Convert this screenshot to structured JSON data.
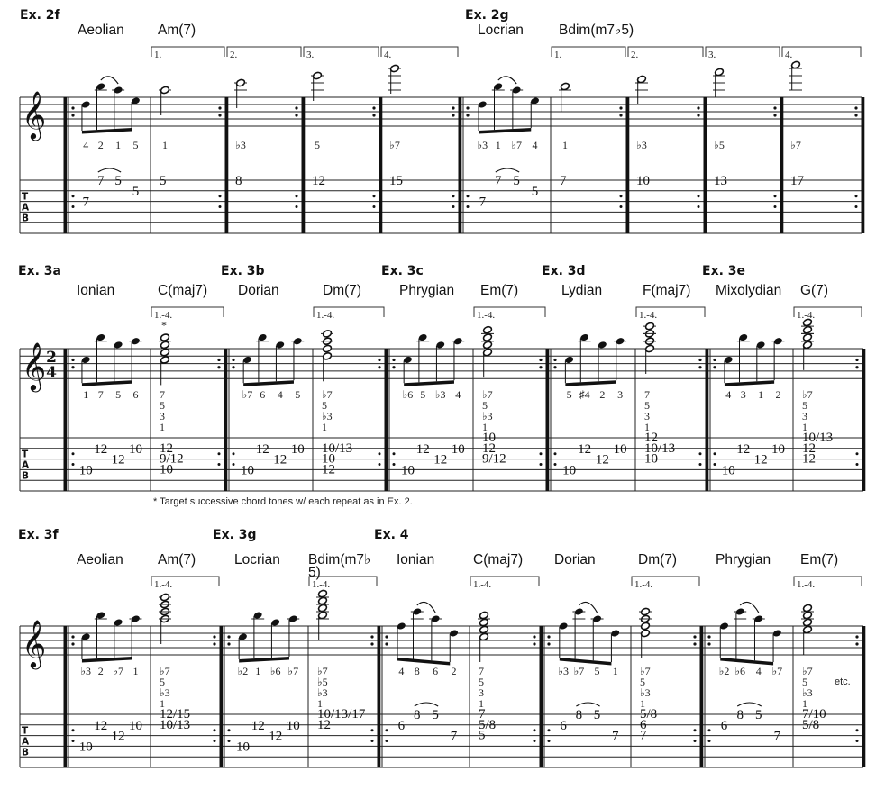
{
  "clef_icon": "treble-clef-icon",
  "tab_letters": [
    "T",
    "A",
    "B"
  ],
  "footnote": "* Target successive chord tones w/ each repeat as in Ex. 2.",
  "etc": "etc.",
  "systems": [
    {
      "examples": [
        {
          "label": "Ex. 2f",
          "mode": "Aeolian",
          "chord": "Am(7)",
          "scale": {
            "notes": [
              "D5",
              "B5",
              "A5",
              "E5"
            ],
            "degrees": [
              "4",
              "2",
              "1",
              "5"
            ],
            "tab": [
              {
                "string": 3,
                "fret": "7"
              },
              {
                "string": 1,
                "fret": "7"
              },
              {
                "string": 1,
                "fret": "5"
              },
              {
                "string": 2,
                "fret": "5"
              }
            ],
            "slur": [
              1,
              2
            ]
          },
          "endings": [
            {
              "label": "1.",
              "notes": [
                "A5"
              ],
              "degrees": [
                "1"
              ],
              "tab": [
                {
                  "string": 1,
                  "fret": "5"
                }
              ]
            },
            {
              "label": "2.",
              "notes": [
                "C6"
              ],
              "degrees": [
                "♭3"
              ],
              "tab": [
                {
                  "string": 1,
                  "fret": "8"
                }
              ]
            },
            {
              "label": "3.",
              "notes": [
                "E6"
              ],
              "degrees": [
                "5"
              ],
              "tab": [
                {
                  "string": 1,
                  "fret": "12"
                }
              ]
            },
            {
              "label": "4.",
              "notes": [
                "G6"
              ],
              "degrees": [
                "♭7"
              ],
              "tab": [
                {
                  "string": 1,
                  "fret": "15"
                }
              ]
            }
          ]
        },
        {
          "label": "Ex. 2g",
          "mode": "Locrian",
          "chord": "Bdim(m7♭5)",
          "scale": {
            "notes": [
              "D5",
              "B5",
              "A5",
              "E5"
            ],
            "degrees": [
              "♭3",
              "1",
              "♭7",
              "4"
            ],
            "tab": [
              {
                "string": 3,
                "fret": "7"
              },
              {
                "string": 1,
                "fret": "7"
              },
              {
                "string": 1,
                "fret": "5"
              },
              {
                "string": 2,
                "fret": "5"
              }
            ],
            "slur": [
              1,
              2
            ]
          },
          "endings": [
            {
              "label": "1.",
              "notes": [
                "B5"
              ],
              "degrees": [
                "1"
              ],
              "tab": [
                {
                  "string": 1,
                  "fret": "7"
                }
              ]
            },
            {
              "label": "2.",
              "notes": [
                "D6"
              ],
              "degrees": [
                "♭3"
              ],
              "tab": [
                {
                  "string": 1,
                  "fret": "10"
                }
              ]
            },
            {
              "label": "3.",
              "notes": [
                "F6"
              ],
              "degrees": [
                "♭5"
              ],
              "tab": [
                {
                  "string": 1,
                  "fret": "13"
                }
              ]
            },
            {
              "label": "4.",
              "notes": [
                "A6"
              ],
              "degrees": [
                "♭7"
              ],
              "tab": [
                {
                  "string": 1,
                  "fret": "17"
                }
              ]
            }
          ]
        }
      ]
    },
    {
      "time_signature": [
        "2",
        "4"
      ],
      "examples": [
        {
          "label": "Ex. 3a",
          "mode": "Ionian",
          "chord": "C(maj7)",
          "scale": {
            "notes": [
              "C5",
              "B5",
              "G5",
              "A5"
            ],
            "degrees": [
              "1",
              "7",
              "5",
              "6"
            ],
            "tab": [
              {
                "string": 4,
                "fret": "10"
              },
              {
                "string": 2,
                "fret": "12"
              },
              {
                "string": 3,
                "fret": "12"
              },
              {
                "string": 2,
                "fret": "10"
              }
            ]
          },
          "endings": [
            {
              "label": "1.-4.",
              "footnote_mark": "*",
              "chord": true,
              "notes": [
                "C5",
                "E5",
                "G5",
                "B5"
              ],
              "degrees": [
                "7",
                "5",
                "3",
                "1"
              ],
              "tab": [
                {
                  "string": 2,
                  "fret": "12"
                },
                {
                  "string": 3,
                  "fret": "9/12"
                },
                {
                  "string": 4,
                  "fret": "10"
                }
              ]
            }
          ]
        },
        {
          "label": "Ex. 3b",
          "mode": "Dorian",
          "chord": "Dm(7)",
          "scale": {
            "notes": [
              "C5",
              "B5",
              "G5",
              "A5"
            ],
            "degrees": [
              "♭7",
              "6",
              "4",
              "5"
            ],
            "tab": [
              {
                "string": 4,
                "fret": "10"
              },
              {
                "string": 2,
                "fret": "12"
              },
              {
                "string": 3,
                "fret": "12"
              },
              {
                "string": 2,
                "fret": "10"
              }
            ]
          },
          "endings": [
            {
              "label": "1.-4.",
              "chord": true,
              "notes": [
                "D5",
                "F5",
                "A5",
                "C6"
              ],
              "degrees": [
                "♭7",
                "5",
                "♭3",
                "1"
              ],
              "tab": [
                {
                  "string": 2,
                  "fret": "10/13"
                },
                {
                  "string": 3,
                  "fret": "10"
                },
                {
                  "string": 4,
                  "fret": "12"
                }
              ]
            }
          ]
        },
        {
          "label": "Ex. 3c",
          "mode": "Phrygian",
          "chord": "Em(7)",
          "scale": {
            "notes": [
              "C5",
              "B5",
              "G5",
              "A5"
            ],
            "degrees": [
              "♭6",
              "5",
              "♭3",
              "4"
            ],
            "tab": [
              {
                "string": 4,
                "fret": "10"
              },
              {
                "string": 2,
                "fret": "12"
              },
              {
                "string": 3,
                "fret": "12"
              },
              {
                "string": 2,
                "fret": "10"
              }
            ]
          },
          "endings": [
            {
              "label": "1.-4.",
              "chord": true,
              "notes": [
                "E5",
                "G5",
                "B5",
                "D6"
              ],
              "degrees": [
                "♭7",
                "5",
                "♭3",
                "1"
              ],
              "tab": [
                {
                  "string": 1,
                  "fret": "10"
                },
                {
                  "string": 2,
                  "fret": "12"
                },
                {
                  "string": 3,
                  "fret": "9/12"
                }
              ]
            }
          ]
        },
        {
          "label": "Ex. 3d",
          "mode": "Lydian",
          "chord": "F(maj7)",
          "scale": {
            "notes": [
              "C5",
              "B5",
              "G5",
              "A5"
            ],
            "degrees": [
              "5",
              "♯4",
              "2",
              "3"
            ],
            "tab": [
              {
                "string": 4,
                "fret": "10"
              },
              {
                "string": 2,
                "fret": "12"
              },
              {
                "string": 3,
                "fret": "12"
              },
              {
                "string": 2,
                "fret": "10"
              }
            ]
          },
          "endings": [
            {
              "label": "1.-4.",
              "chord": true,
              "notes": [
                "F5",
                "A5",
                "C6",
                "E6"
              ],
              "degrees": [
                "7",
                "5",
                "3",
                "1"
              ],
              "tab": [
                {
                  "string": 1,
                  "fret": "12"
                },
                {
                  "string": 2,
                  "fret": "10/13"
                },
                {
                  "string": 3,
                  "fret": "10"
                }
              ]
            }
          ]
        },
        {
          "label": "Ex. 3e",
          "mode": "Mixolydian",
          "chord": "G(7)",
          "scale": {
            "notes": [
              "C5",
              "B5",
              "G5",
              "A5"
            ],
            "degrees": [
              "4",
              "3",
              "1",
              "2"
            ],
            "tab": [
              {
                "string": 4,
                "fret": "10"
              },
              {
                "string": 2,
                "fret": "12"
              },
              {
                "string": 3,
                "fret": "12"
              },
              {
                "string": 2,
                "fret": "10"
              }
            ]
          },
          "endings": [
            {
              "label": "1.-4.",
              "chord": true,
              "notes": [
                "G5",
                "B5",
                "D6",
                "F6"
              ],
              "degrees": [
                "♭7",
                "5",
                "3",
                "1"
              ],
              "tab": [
                {
                  "string": 1,
                  "fret": "10/13"
                },
                {
                  "string": 2,
                  "fret": "12"
                },
                {
                  "string": 3,
                  "fret": "12"
                }
              ]
            }
          ]
        }
      ]
    },
    {
      "examples": [
        {
          "label": "Ex. 3f",
          "mode": "Aeolian",
          "chord": "Am(7)",
          "scale": {
            "notes": [
              "C5",
              "B5",
              "G5",
              "A5"
            ],
            "degrees": [
              "♭3",
              "2",
              "♭7",
              "1"
            ],
            "tab": [
              {
                "string": 4,
                "fret": "10"
              },
              {
                "string": 2,
                "fret": "12"
              },
              {
                "string": 3,
                "fret": "12"
              },
              {
                "string": 2,
                "fret": "10"
              }
            ]
          },
          "endings": [
            {
              "label": "1.-4.",
              "chord": true,
              "notes": [
                "A5",
                "C6",
                "E6",
                "G6"
              ],
              "degrees": [
                "♭7",
                "5",
                "♭3",
                "1"
              ],
              "tab": [
                {
                  "string": 1,
                  "fret": "12/15"
                },
                {
                  "string": 2,
                  "fret": "10/13"
                }
              ]
            }
          ]
        },
        {
          "label": "Ex. 3g",
          "mode": "Locrian",
          "chord": "Bdim(m7♭5)",
          "scale": {
            "notes": [
              "C5",
              "B5",
              "G5",
              "A5"
            ],
            "degrees": [
              "♭2",
              "1",
              "♭6",
              "♭7"
            ],
            "tab": [
              {
                "string": 4,
                "fret": "10"
              },
              {
                "string": 2,
                "fret": "12"
              },
              {
                "string": 3,
                "fret": "12"
              },
              {
                "string": 2,
                "fret": "10"
              }
            ]
          },
          "endings": [
            {
              "label": "1.-4.",
              "chord": true,
              "notes": [
                "B5",
                "D6",
                "F6",
                "A6"
              ],
              "degrees": [
                "♭7",
                "♭5",
                "♭3",
                "1"
              ],
              "tab": [
                {
                  "string": 1,
                  "fret": "10/13/17"
                },
                {
                  "string": 2,
                  "fret": "12"
                }
              ]
            }
          ]
        },
        {
          "label": "Ex. 4",
          "mode": "Ionian",
          "chord": "C(maj7)",
          "scale": {
            "notes": [
              "F5",
              "C6",
              "A5",
              "D5"
            ],
            "degrees": [
              "4",
              "8",
              "6",
              "2"
            ],
            "tab": [
              {
                "string": 2,
                "fret": "6"
              },
              {
                "string": 1,
                "fret": "8"
              },
              {
                "string": 1,
                "fret": "5"
              },
              {
                "string": 3,
                "fret": "7"
              }
            ],
            "slur": [
              1,
              2
            ]
          },
          "endings": [
            {
              "label": "1.-4.",
              "chord": true,
              "notes": [
                "C5",
                "E5",
                "G5",
                "B5"
              ],
              "degrees": [
                "7",
                "5",
                "3",
                "1"
              ],
              "tab": [
                {
                  "string": 1,
                  "fret": "7"
                },
                {
                  "string": 2,
                  "fret": "5/8"
                },
                {
                  "string": 3,
                  "fret": "5"
                }
              ]
            }
          ]
        },
        {
          "mode": "Dorian",
          "chord": "Dm(7)",
          "scale": {
            "notes": [
              "F5",
              "C6",
              "A5",
              "D5"
            ],
            "degrees": [
              "♭3",
              "♭7",
              "5",
              "1"
            ],
            "tab": [
              {
                "string": 2,
                "fret": "6"
              },
              {
                "string": 1,
                "fret": "8"
              },
              {
                "string": 1,
                "fret": "5"
              },
              {
                "string": 3,
                "fret": "7"
              }
            ],
            "slur": [
              1,
              2
            ]
          },
          "endings": [
            {
              "label": "1.-4.",
              "chord": true,
              "notes": [
                "D5",
                "F5",
                "A5",
                "C6"
              ],
              "degrees": [
                "♭7",
                "5",
                "♭3",
                "1"
              ],
              "tab": [
                {
                  "string": 1,
                  "fret": "5/8"
                },
                {
                  "string": 2,
                  "fret": "6"
                },
                {
                  "string": 3,
                  "fret": "7"
                }
              ]
            }
          ]
        },
        {
          "mode": "Phrygian",
          "chord": "Em(7)",
          "scale": {
            "notes": [
              "F5",
              "C6",
              "A5",
              "D5"
            ],
            "degrees": [
              "♭2",
              "♭6",
              "4",
              "♭7"
            ],
            "tab": [
              {
                "string": 2,
                "fret": "6"
              },
              {
                "string": 1,
                "fret": "8"
              },
              {
                "string": 1,
                "fret": "5"
              },
              {
                "string": 3,
                "fret": "7"
              }
            ],
            "slur": [
              1,
              2
            ]
          },
          "endings": [
            {
              "label": "1.-4.",
              "chord": true,
              "etc": true,
              "notes": [
                "E5",
                "G5",
                "B5",
                "D6"
              ],
              "degrees": [
                "♭7",
                "5",
                "♭3",
                "1"
              ],
              "tab": [
                {
                  "string": 1,
                  "fret": "7/10"
                },
                {
                  "string": 2,
                  "fret": "5/8"
                }
              ]
            }
          ]
        }
      ]
    }
  ]
}
